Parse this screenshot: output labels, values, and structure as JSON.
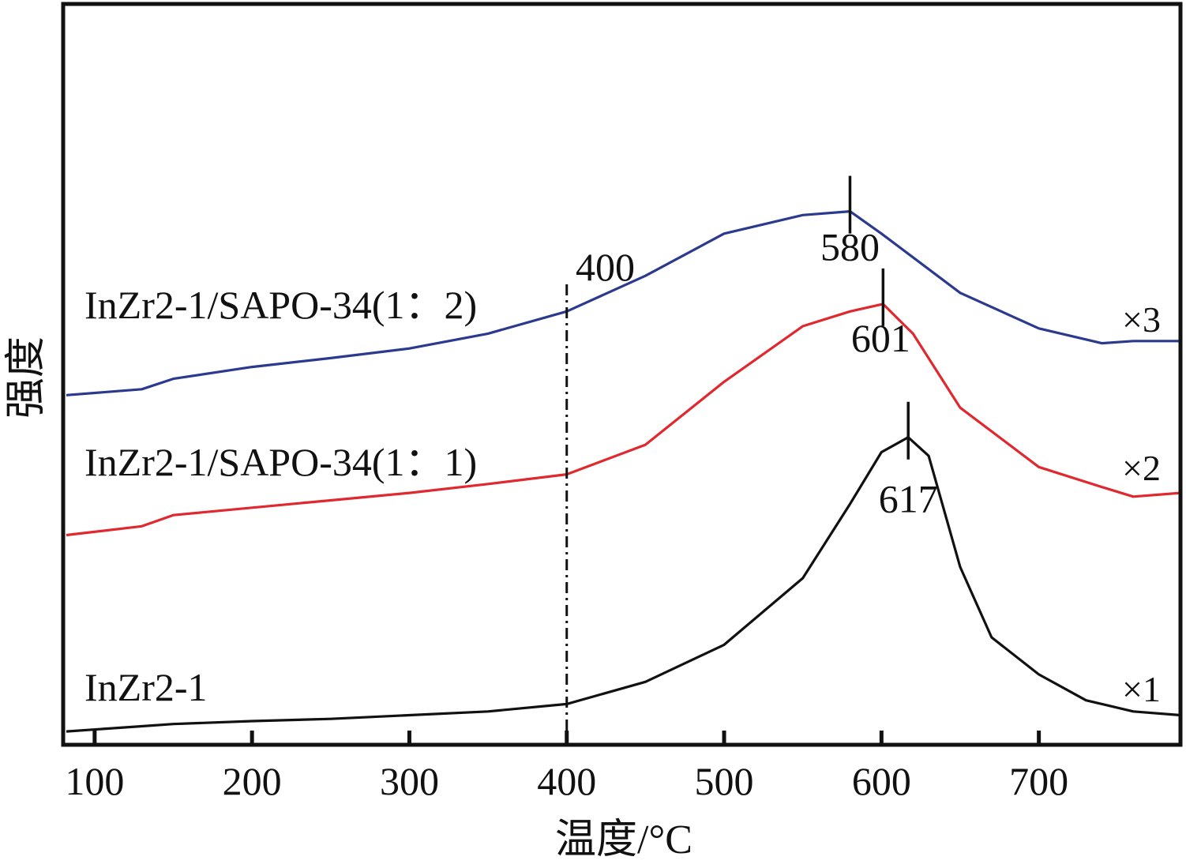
{
  "chart_data": {
    "type": "line",
    "title": "",
    "xlabel": "温度/°C",
    "ylabel": "强度",
    "xlim": [
      80,
      790
    ],
    "ylim": [
      0,
      1
    ],
    "grid": false,
    "x_ticks": [
      100,
      200,
      300,
      400,
      500,
      600,
      700
    ],
    "x_tick_labels": [
      "100",
      "200",
      "300",
      "400",
      "500",
      "600",
      "700"
    ],
    "reference_line": {
      "x": 400,
      "label": "400",
      "style": "dash-dot"
    },
    "series": [
      {
        "name": "InZr2-1/SAPO-34(1：2)",
        "multiplier": "×3",
        "color": "#2b3a8f",
        "peak": {
          "x": 580,
          "label": "580"
        },
        "x": [
          82,
          130,
          150,
          200,
          250,
          300,
          350,
          400,
          450,
          500,
          550,
          580,
          600,
          650,
          700,
          740,
          760,
          790
        ],
        "y": [
          0.472,
          0.48,
          0.494,
          0.51,
          0.522,
          0.535,
          0.555,
          0.585,
          0.633,
          0.69,
          0.715,
          0.72,
          0.69,
          0.61,
          0.562,
          0.542,
          0.545,
          0.545
        ]
      },
      {
        "name": "InZr2-1/SAPO-34(1：1)",
        "multiplier": "×2",
        "color": "#e0282e",
        "peak": {
          "x": 601,
          "label": "601"
        },
        "x": [
          82,
          130,
          150,
          200,
          250,
          300,
          350,
          400,
          450,
          500,
          550,
          580,
          601,
          620,
          650,
          700,
          740,
          760,
          790
        ],
        "y": [
          0.283,
          0.295,
          0.31,
          0.32,
          0.33,
          0.34,
          0.352,
          0.365,
          0.405,
          0.49,
          0.565,
          0.585,
          0.595,
          0.555,
          0.455,
          0.375,
          0.348,
          0.335,
          0.34
        ]
      },
      {
        "name": "InZr2-1",
        "multiplier": "×1",
        "color": "#111111",
        "peak": {
          "x": 617,
          "label": "617"
        },
        "x": [
          82,
          130,
          150,
          200,
          250,
          300,
          350,
          400,
          450,
          500,
          550,
          580,
          600,
          617,
          630,
          650,
          670,
          700,
          730,
          760,
          790
        ],
        "y": [
          0.018,
          0.025,
          0.028,
          0.032,
          0.035,
          0.04,
          0.045,
          0.055,
          0.085,
          0.135,
          0.225,
          0.325,
          0.395,
          0.415,
          0.39,
          0.24,
          0.145,
          0.095,
          0.06,
          0.045,
          0.04
        ]
      }
    ]
  }
}
